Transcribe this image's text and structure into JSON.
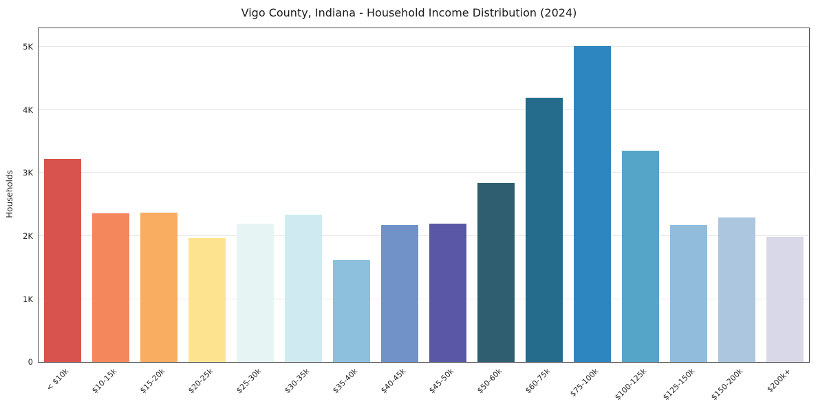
{
  "chart_data": {
    "type": "bar",
    "title": "Vigo County, Indiana - Household Income Distribution (2024)",
    "xlabel": "",
    "ylabel": "Households",
    "ylim": [
      0,
      5300
    ],
    "grid": true,
    "legend": "none",
    "categories": [
      "< $10k",
      "$10-15k",
      "$15-20k",
      "$20-25k",
      "$25-30k",
      "$30-35k",
      "$35-40k",
      "$40-45k",
      "$45-50k",
      "$50-60k",
      "$60-75k",
      "$75-100k",
      "$100-125k",
      "$125-150k",
      "$150-200k",
      "$200k+"
    ],
    "values": [
      3220,
      2360,
      2370,
      1970,
      2200,
      2340,
      1620,
      2180,
      2200,
      2840,
      4200,
      5020,
      3360,
      2180,
      2290,
      1990
    ],
    "bar_colors": [
      "#d9534e",
      "#f4875c",
      "#f9ad60",
      "#fde390",
      "#e6f5f3",
      "#cfeaf1",
      "#8cc0dc",
      "#7092c8",
      "#5a57a6",
      "#2f5e70",
      "#246b8c",
      "#2e86c1",
      "#55a5c9",
      "#92bcdb",
      "#adc6e0",
      "#d8d8e8"
    ],
    "yticks": {
      "values": [
        0,
        1000,
        2000,
        3000,
        4000,
        5000
      ],
      "labels": [
        "0",
        "1K",
        "2K",
        "3K",
        "4K",
        "5K"
      ]
    }
  }
}
